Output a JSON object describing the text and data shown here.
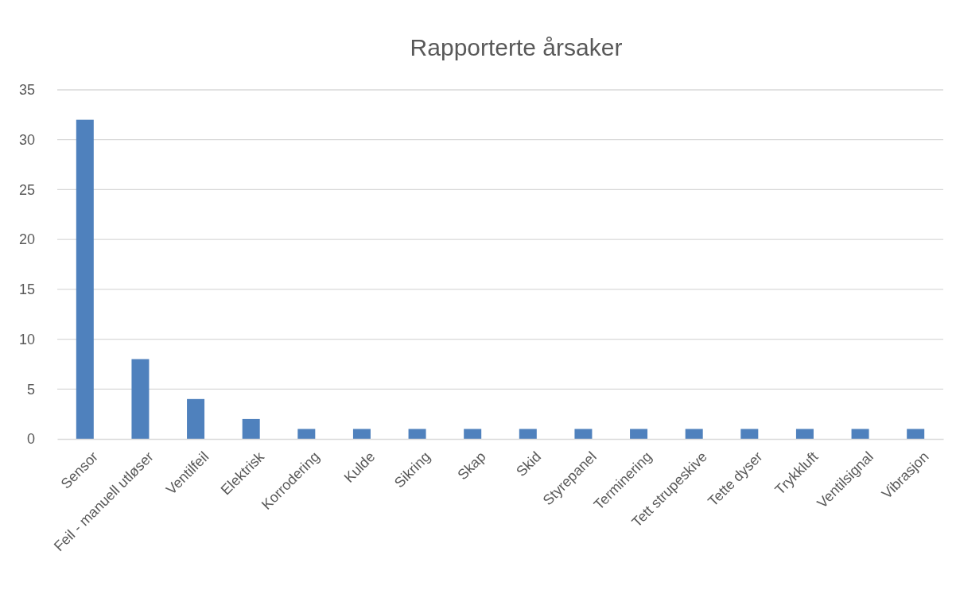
{
  "chart_data": {
    "type": "bar",
    "title": "Rapporterte årsaker",
    "categories": [
      "Sensor",
      "Feil - manuell utløser",
      "Ventilfeil",
      "Elektrisk",
      "Korrodering",
      "Kulde",
      "Sikring",
      "Skap",
      "Skid",
      "Styrepanel",
      "Terminering",
      "Tett strupeskive",
      "Tette dyser",
      "Trykkluft",
      "Ventilsignal",
      "Vibrasjon"
    ],
    "values": [
      32,
      8,
      4,
      2,
      1,
      1,
      1,
      1,
      1,
      1,
      1,
      1,
      1,
      1,
      1,
      1
    ],
    "color": "#4f81bd",
    "ylim": [
      0,
      35
    ],
    "yticks": [
      0,
      5,
      10,
      15,
      20,
      25,
      30,
      35
    ],
    "grid": "y"
  }
}
